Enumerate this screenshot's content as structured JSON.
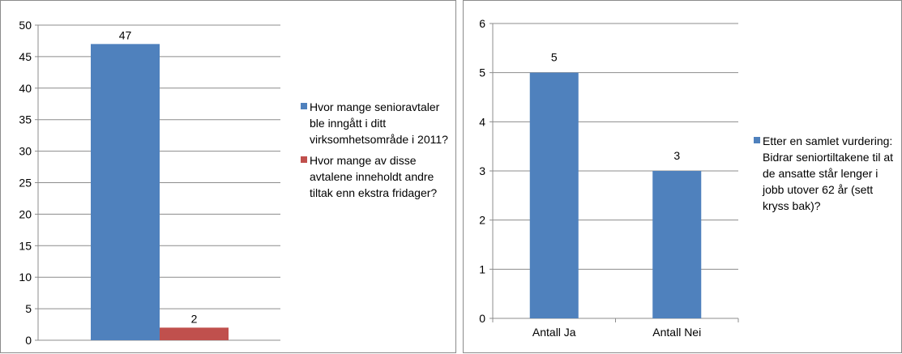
{
  "chart_data": [
    {
      "type": "bar",
      "ylim": [
        0,
        50
      ],
      "yticks": [
        0,
        5,
        10,
        15,
        20,
        25,
        30,
        35,
        40,
        45,
        50
      ],
      "grid": true,
      "legend_position": "right",
      "series": [
        {
          "name": "Hvor mange senioravtaler ble inngått i ditt virksomhetsområde i 2011?",
          "values": [
            47
          ],
          "color": "#4f81bd",
          "data_label": "47"
        },
        {
          "name": "Hvor mange av disse avtalene inneholdt andre tiltak enn ekstra fridager?",
          "values": [
            2
          ],
          "color": "#c0504d",
          "data_label": "2"
        }
      ]
    },
    {
      "type": "bar",
      "ylim": [
        0,
        6
      ],
      "yticks": [
        0,
        1,
        2,
        3,
        4,
        5,
        6
      ],
      "grid": true,
      "legend_position": "right",
      "categories": [
        "Antall Ja",
        "Antall Nei"
      ],
      "series": [
        {
          "name": "Etter en samlet vurdering: Bidrar seniortiltakene til at de ansatte står lenger i jobb utover 62 år (sett kryss bak)?",
          "values": [
            5,
            3
          ],
          "color": "#4f81bd",
          "data_labels": [
            "5",
            "3"
          ]
        }
      ]
    }
  ]
}
